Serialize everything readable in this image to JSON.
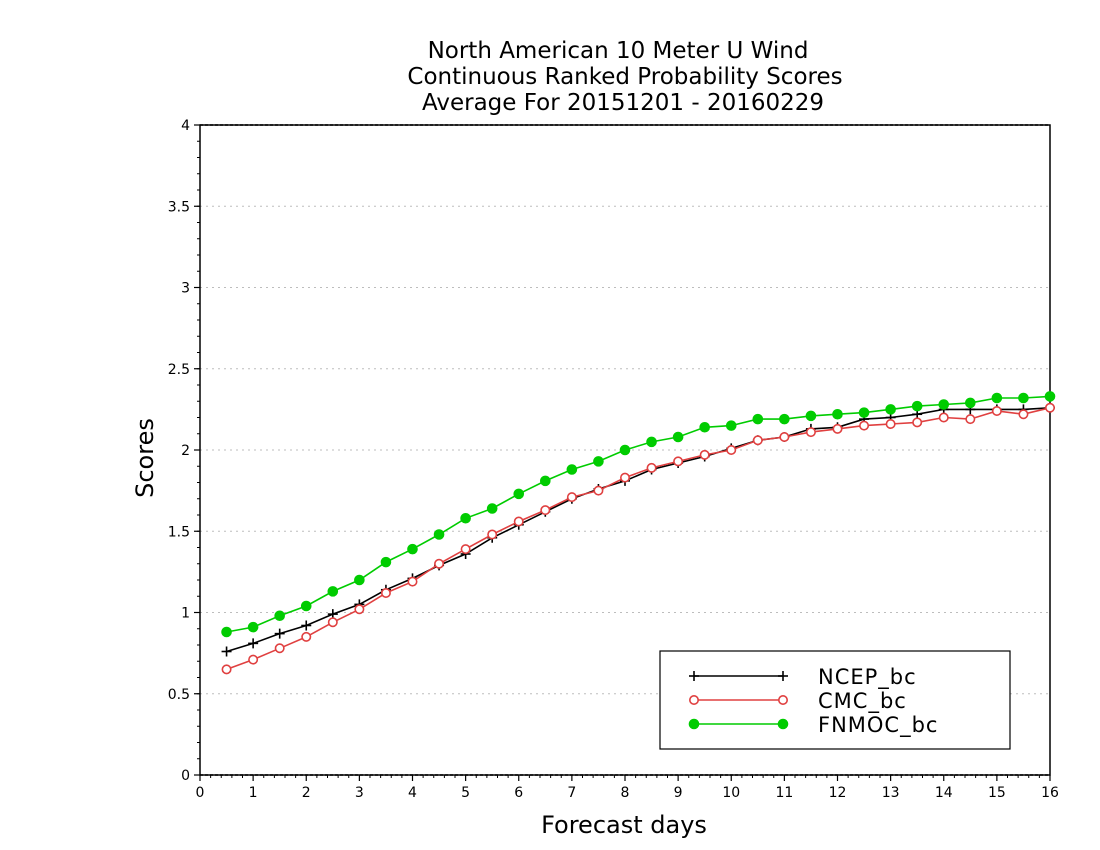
{
  "chart_data": {
    "type": "line",
    "title": [
      "North American 10 Meter U Wind",
      "Continuous Ranked Probability Scores",
      "Average For 20151201 - 20160229"
    ],
    "xlabel": "Forecast days",
    "ylabel": "Scores",
    "xlim": [
      0,
      16
    ],
    "ylim": [
      0,
      4
    ],
    "x_ticks": [
      "0",
      "1",
      "2",
      "3",
      "4",
      "5",
      "6",
      "7",
      "8",
      "9",
      "10",
      "11",
      "12",
      "13",
      "14",
      "15",
      "16"
    ],
    "y_ticks": [
      "0",
      "0.5",
      "1",
      "1.5",
      "2",
      "2.5",
      "3",
      "3.5",
      "4"
    ],
    "grid": "horizontal-dotted",
    "legend_position": "bottom-right",
    "x": [
      0.5,
      1,
      1.5,
      2,
      2.5,
      3,
      3.5,
      4,
      4.5,
      5,
      5.5,
      6,
      6.5,
      7,
      7.5,
      8,
      8.5,
      9,
      9.5,
      10,
      10.5,
      11,
      11.5,
      12,
      12.5,
      13,
      13.5,
      14,
      14.5,
      15,
      15.5,
      16
    ],
    "series": [
      {
        "name": "NCEP_bc",
        "color": "#000000",
        "marker": "plus",
        "values": [
          0.76,
          0.81,
          0.87,
          0.92,
          0.99,
          1.05,
          1.14,
          1.21,
          1.29,
          1.36,
          1.46,
          1.54,
          1.62,
          1.7,
          1.76,
          1.81,
          1.88,
          1.92,
          1.96,
          2.01,
          2.06,
          2.08,
          2.13,
          2.14,
          2.19,
          2.2,
          2.22,
          2.25,
          2.25,
          2.25,
          2.25,
          2.26
        ]
      },
      {
        "name": "CMC_bc",
        "color": "#e04040",
        "marker": "open-circle",
        "values": [
          0.65,
          0.71,
          0.78,
          0.85,
          0.94,
          1.02,
          1.12,
          1.19,
          1.3,
          1.39,
          1.48,
          1.56,
          1.63,
          1.71,
          1.75,
          1.83,
          1.89,
          1.93,
          1.97,
          2.0,
          2.06,
          2.08,
          2.11,
          2.13,
          2.15,
          2.16,
          2.17,
          2.2,
          2.19,
          2.24,
          2.22,
          2.26
        ]
      },
      {
        "name": "FNMOC_bc",
        "color": "#00cc00",
        "marker": "filled-circle",
        "values": [
          0.88,
          0.91,
          0.98,
          1.04,
          1.13,
          1.2,
          1.31,
          1.39,
          1.48,
          1.58,
          1.64,
          1.73,
          1.81,
          1.88,
          1.93,
          2.0,
          2.05,
          2.08,
          2.14,
          2.15,
          2.19,
          2.19,
          2.21,
          2.22,
          2.23,
          2.25,
          2.27,
          2.28,
          2.29,
          2.32,
          2.32,
          2.33
        ]
      }
    ]
  }
}
